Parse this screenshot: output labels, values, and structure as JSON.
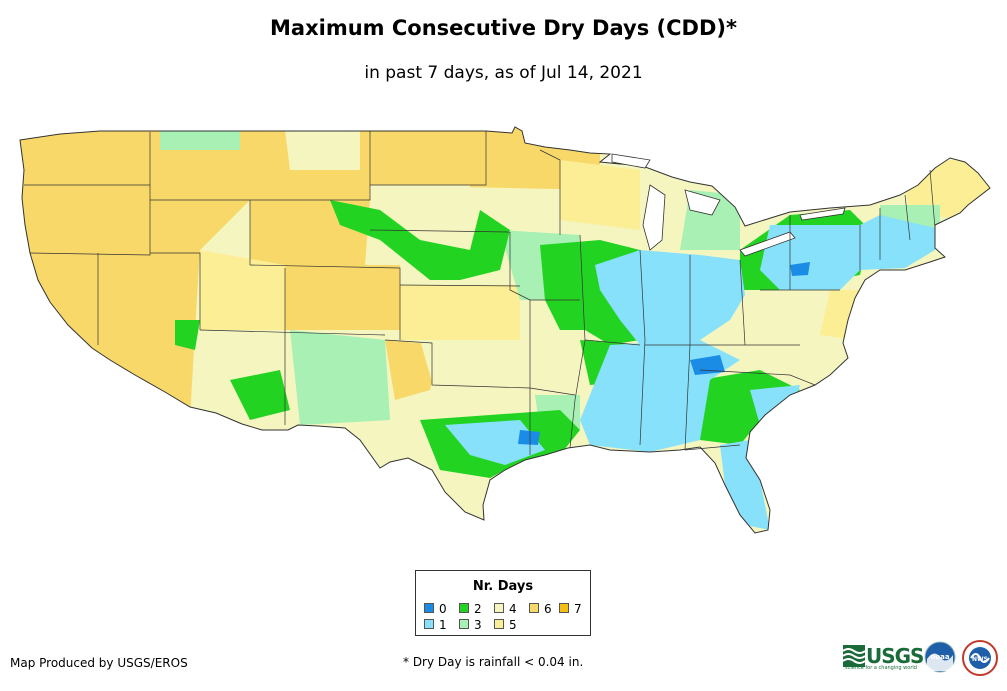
{
  "header": {
    "title": "Maximum Consecutive Dry Days (CDD)*",
    "subtitle": "in past 7 days, as of Jul 14, 2021"
  },
  "legend": {
    "title": "Nr. Days",
    "items": [
      {
        "label": "0",
        "color": "#1a8ce6"
      },
      {
        "label": "1",
        "color": "#87e1fa"
      },
      {
        "label": "2",
        "color": "#22d322"
      },
      {
        "label": "3",
        "color": "#a8f0b4"
      },
      {
        "label": "4",
        "color": "#f5f5c0"
      },
      {
        "label": "5",
        "color": "#fbee94"
      },
      {
        "label": "6",
        "color": "#f9d86a"
      },
      {
        "label": "7",
        "color": "#f5be14"
      }
    ]
  },
  "footer": {
    "credit": "Map Produced by USGS/EROS",
    "footnote": "* Dry Day is rainfall < 0.04 in."
  },
  "logos": {
    "usgs": "USGS",
    "usgs_tagline": "science for a changing world",
    "noaa": "noaa",
    "nws": "NWS"
  },
  "colors": {
    "boundary": "#333333",
    "usgs_green": "#1b6b3a",
    "noaa_blue": "#1f5fa8"
  }
}
